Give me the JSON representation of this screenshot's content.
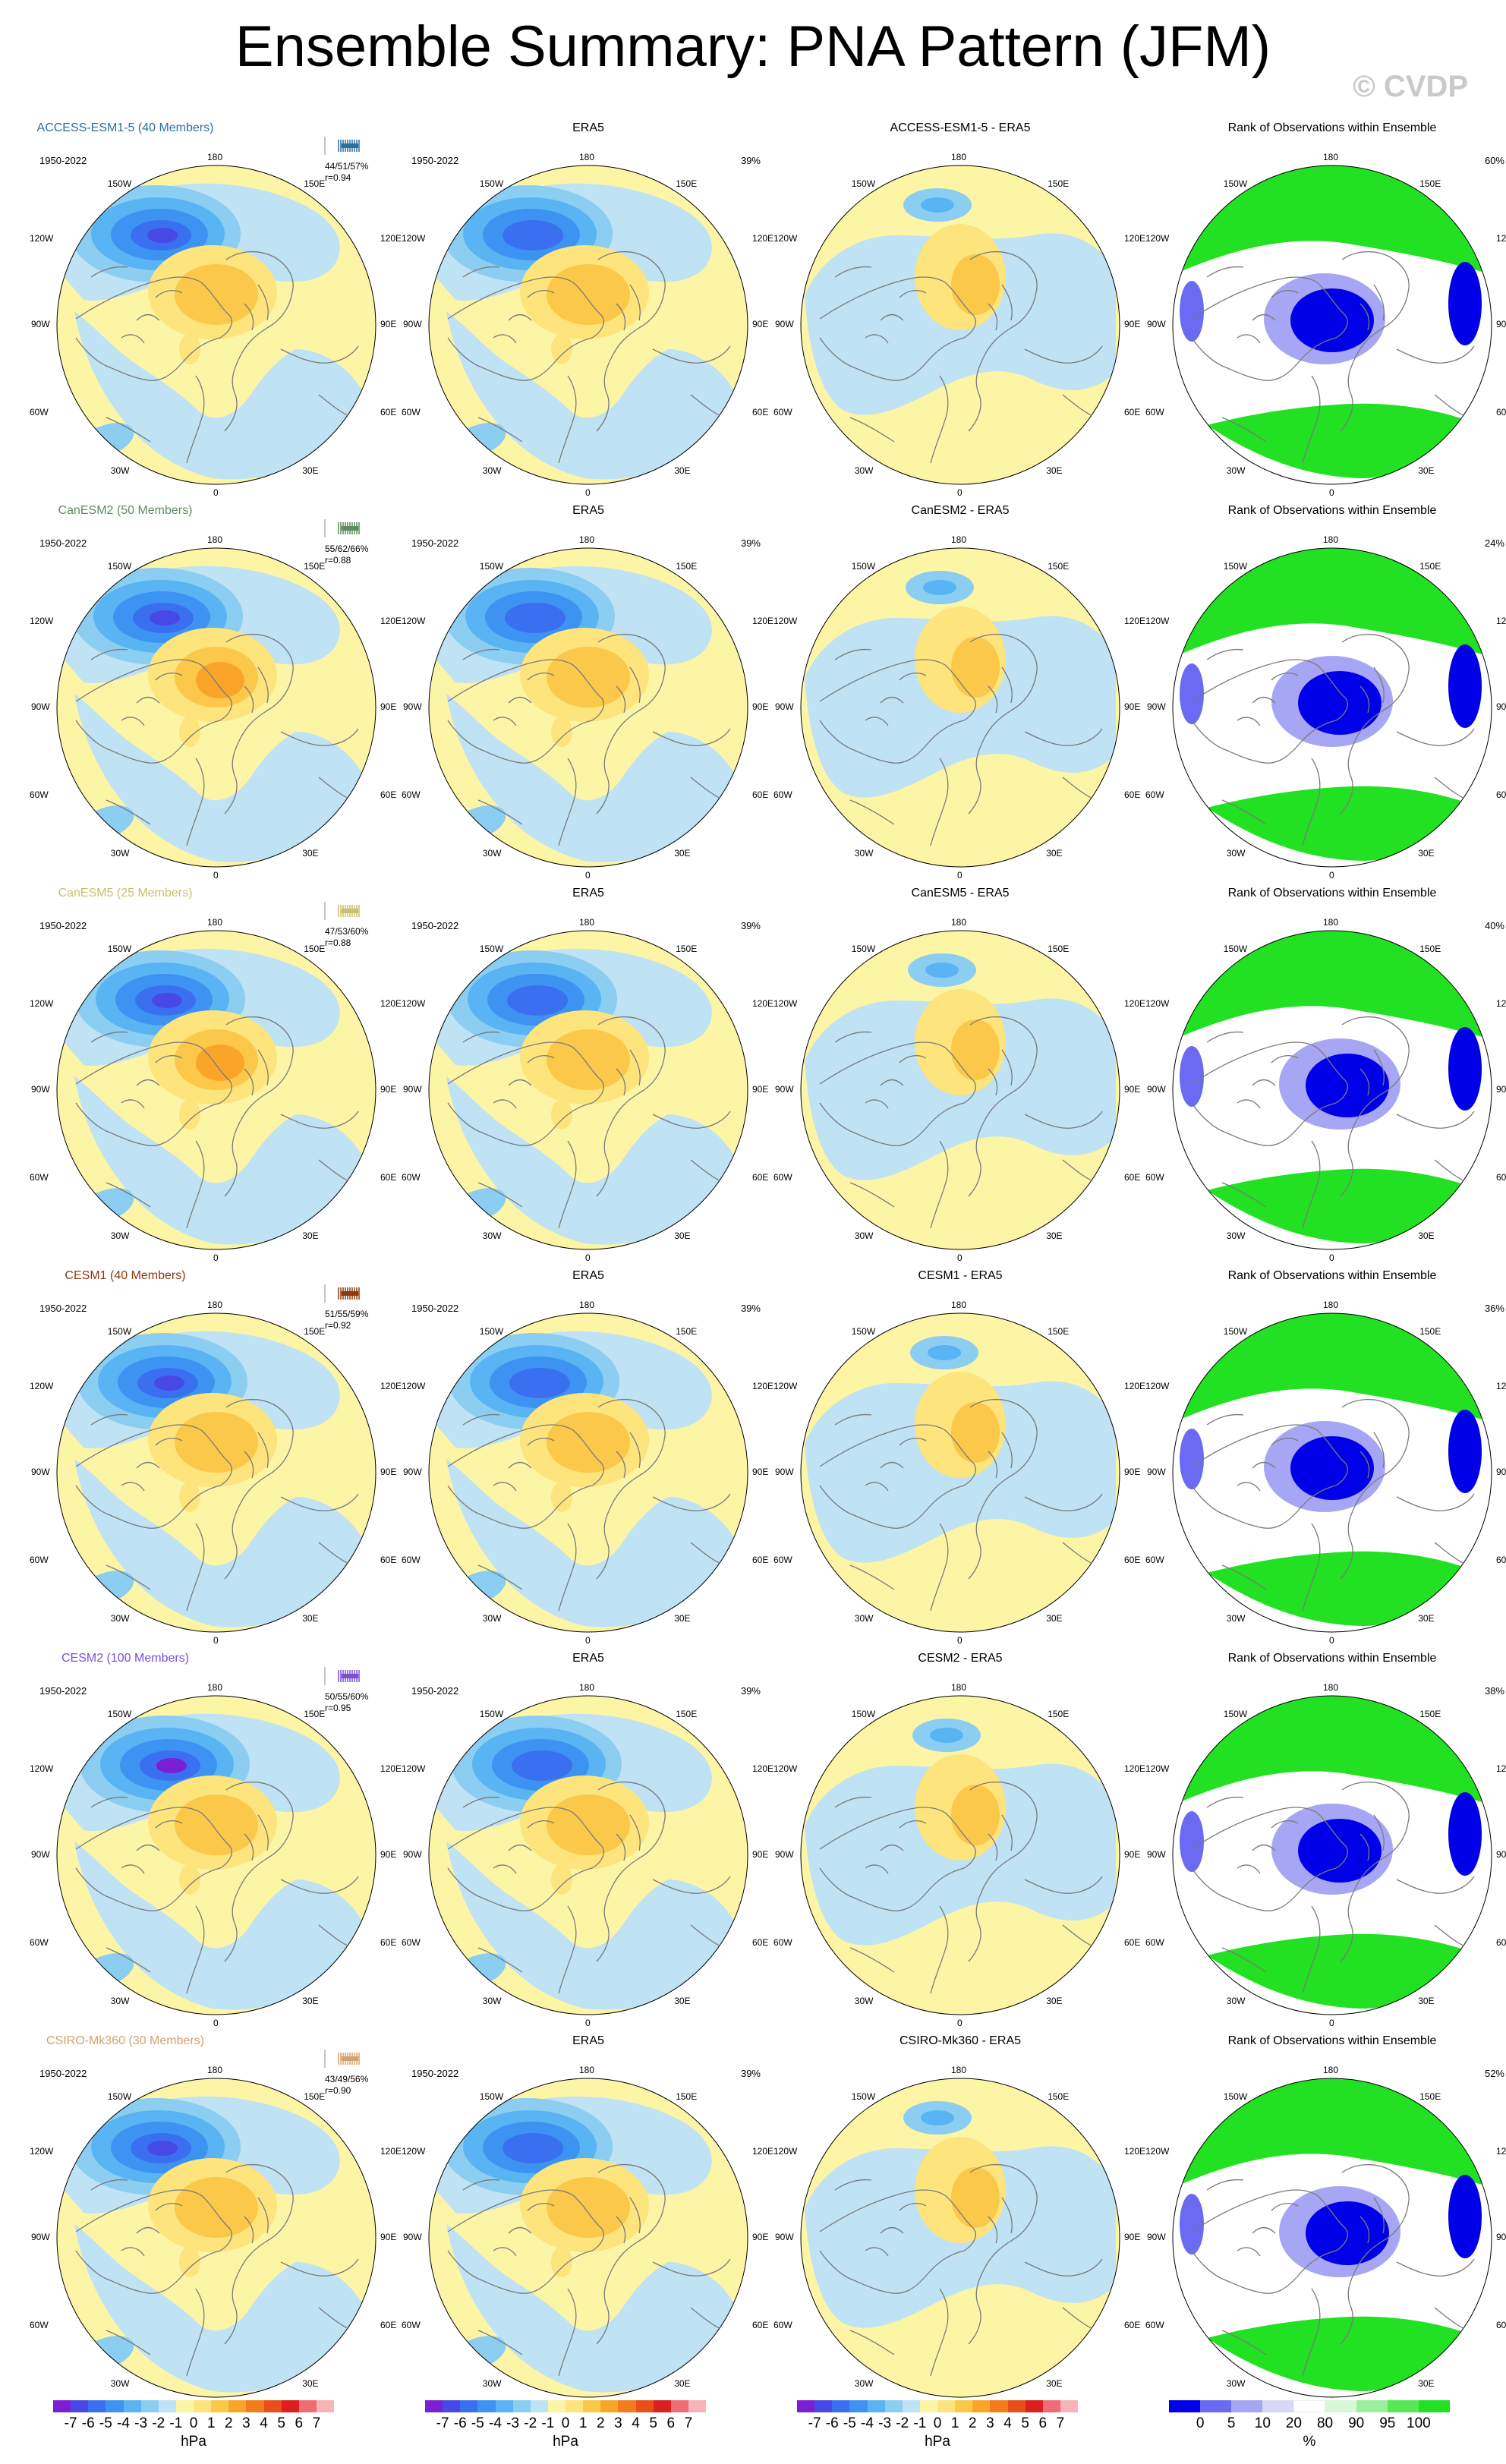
{
  "page": {
    "title": "Ensemble Summary: PNA Pattern (JFM)",
    "copyright": "© CVDP"
  },
  "colors": {
    "pattern_scale": [
      "#7a1fd4",
      "#4848e6",
      "#3a6ff0",
      "#3c93f2",
      "#58b4f2",
      "#8ccdf2",
      "#bfe2f4",
      "#fdf5a6",
      "#fde47c",
      "#fbc84a",
      "#f9a52a",
      "#f37d1d",
      "#ea4f1b",
      "#dc1f1f",
      "#ee6d74",
      "#f7b3b6"
    ],
    "rank_scale": [
      "#0000e8",
      "#6a6af2",
      "#a6a6f4",
      "#d8d8f6",
      "#ffffff",
      "#d8f8d8",
      "#9cf09c",
      "#56e856",
      "#22e022"
    ],
    "land_outline": "#7a7a7a",
    "map_edge": "#000000"
  },
  "colorbars": {
    "pattern_ticks": [
      "-7",
      "-6",
      "-5",
      "-4",
      "-3",
      "-2",
      "-1",
      "0",
      "1",
      "2",
      "3",
      "4",
      "5",
      "6",
      "7"
    ],
    "pattern_units": "hPa",
    "rank_ticks": [
      "0",
      "5",
      "10",
      "20",
      "80",
      "90",
      "95",
      "100"
    ],
    "rank_units": "%"
  },
  "map_labels": {
    "top": "180",
    "bottom": "0",
    "left_upper": "120W",
    "left_mid": "90W",
    "left_lower": "60W",
    "right_upper": "120E",
    "right_mid": "90E",
    "right_lower": "60E",
    "top_left": "150W",
    "top_right": "150E",
    "bottom_left": "30W",
    "bottom_right": "30E"
  },
  "rows": [
    {
      "model": "ACCESS-ESM1-5 (40 Members)",
      "model_color": "#2a6f9f",
      "period": "1950-2022",
      "stats_pcts": "44/51/57%",
      "stats_r": "r=0.94",
      "obs_title": "ERA5",
      "obs_period": "1950-2022",
      "obs_pct": "39%",
      "diff_title": "ACCESS-ESM1-5 - ERA5",
      "rank_title": "Rank of Observations within Ensemble",
      "rank_pct": "60%"
    },
    {
      "model": "CanESM2 (50 Members)",
      "model_color": "#5e8c5e",
      "period": "1950-2022",
      "stats_pcts": "55/62/66%",
      "stats_r": "r=0.88",
      "obs_title": "ERA5",
      "obs_period": "1950-2022",
      "obs_pct": "39%",
      "diff_title": "CanESM2 - ERA5",
      "rank_title": "Rank of Observations within Ensemble",
      "rank_pct": "24%"
    },
    {
      "model": "CanESM5 (25 Members)",
      "model_color": "#c9c06e",
      "period": "1950-2022",
      "stats_pcts": "47/53/60%",
      "stats_r": "r=0.88",
      "obs_title": "ERA5",
      "obs_period": "1950-2022",
      "obs_pct": "39%",
      "diff_title": "CanESM5 - ERA5",
      "rank_title": "Rank of Observations within Ensemble",
      "rank_pct": "40%"
    },
    {
      "model": "CESM1 (40 Members)",
      "model_color": "#8b3a0e",
      "period": "1950-2022",
      "stats_pcts": "51/55/59%",
      "stats_r": "r=0.92",
      "obs_title": "ERA5",
      "obs_period": "1950-2022",
      "obs_pct": "39%",
      "diff_title": "CESM1 - ERA5",
      "rank_title": "Rank of Observations within Ensemble",
      "rank_pct": "36%"
    },
    {
      "model": "CESM2 (100 Members)",
      "model_color": "#7a4fd6",
      "period": "1950-2022",
      "stats_pcts": "50/55/60%",
      "stats_r": "r=0.95",
      "obs_title": "ERA5",
      "obs_period": "1950-2022",
      "obs_pct": "39%",
      "diff_title": "CESM2 - ERA5",
      "rank_title": "Rank of Observations within Ensemble",
      "rank_pct": "38%"
    },
    {
      "model": "CSIRO-Mk360 (30 Members)",
      "model_color": "#d6a070",
      "period": "1950-2022",
      "stats_pcts": "43/49/56%",
      "stats_r": "r=0.90",
      "obs_title": "ERA5",
      "obs_period": "1950-2022",
      "obs_pct": "39%",
      "diff_title": "CSIRO-Mk360 - ERA5",
      "rank_title": "Rank of Observations within Ensemble",
      "rank_pct": "52%"
    }
  ]
}
